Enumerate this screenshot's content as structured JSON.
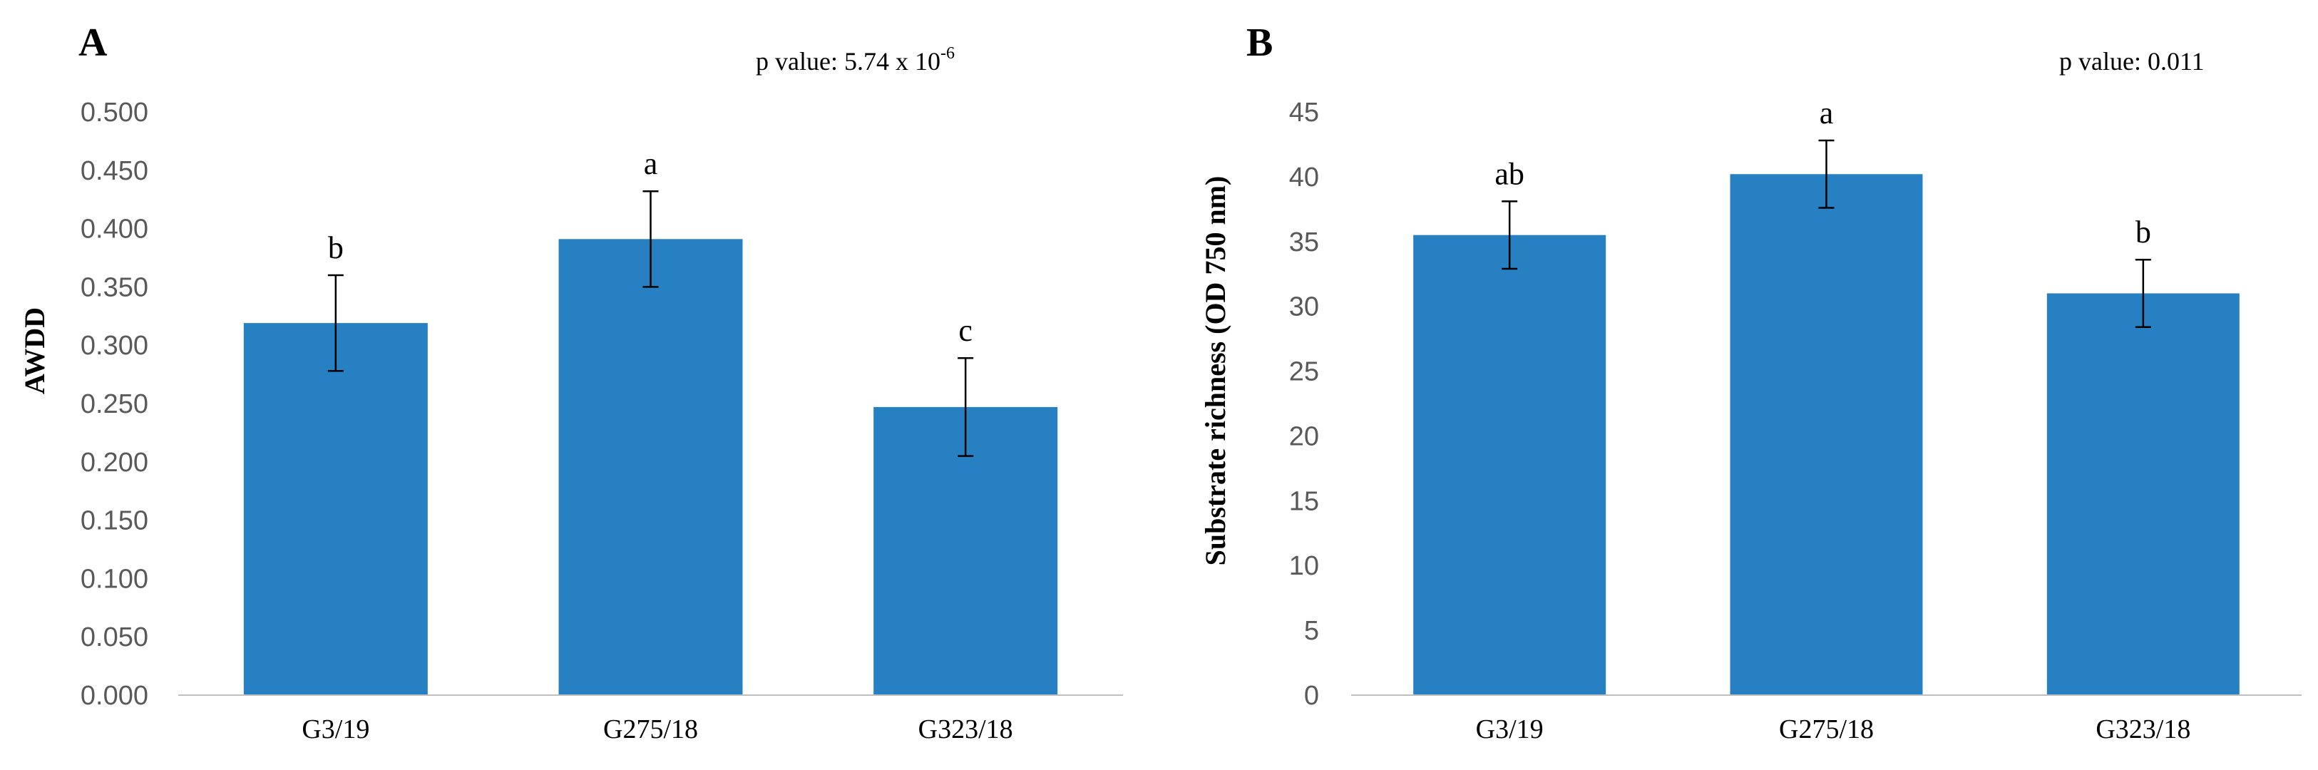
{
  "chart_data": [
    {
      "type": "bar",
      "panel": "A",
      "annotation": "p value: 5.74 x 10",
      "annotation_exponent": "-6",
      "categories": [
        "G3/19",
        "G275/18",
        "G323/18"
      ],
      "values": [
        0.319,
        0.391,
        0.247
      ],
      "errors": [
        0.041,
        0.041,
        0.042
      ],
      "significance": [
        "b",
        "a",
        "c"
      ],
      "ylabel": "AWDD",
      "xlabel": "",
      "ylim": [
        0,
        0.5
      ],
      "yticks": [
        0,
        0.05,
        0.1,
        0.15,
        0.2,
        0.25,
        0.3,
        0.35,
        0.4,
        0.45,
        0.5
      ],
      "ytick_labels": [
        "0.000",
        "0.050",
        "0.100",
        "0.150",
        "0.200",
        "0.250",
        "0.300",
        "0.350",
        "0.400",
        "0.450",
        "0.500"
      ],
      "bar_color": "#2680C2",
      "grid": false
    },
    {
      "type": "bar",
      "panel": "B",
      "annotation": "p value: 0.011",
      "annotation_exponent": "",
      "categories": [
        "G3/19",
        "G275/18",
        "G323/18"
      ],
      "values": [
        35.5,
        40.2,
        31.0
      ],
      "errors": [
        2.6,
        2.6,
        2.6
      ],
      "significance": [
        "ab",
        "a",
        "b"
      ],
      "ylabel": "Substrate richness (OD 750 nm)",
      "xlabel": "",
      "ylim": [
        0,
        45
      ],
      "yticks": [
        0,
        5,
        10,
        15,
        20,
        25,
        30,
        35,
        40,
        45
      ],
      "ytick_labels": [
        "0",
        "5",
        "10",
        "15",
        "20",
        "25",
        "30",
        "35",
        "40",
        "45"
      ],
      "bar_color": "#2680C2",
      "grid": false
    }
  ]
}
